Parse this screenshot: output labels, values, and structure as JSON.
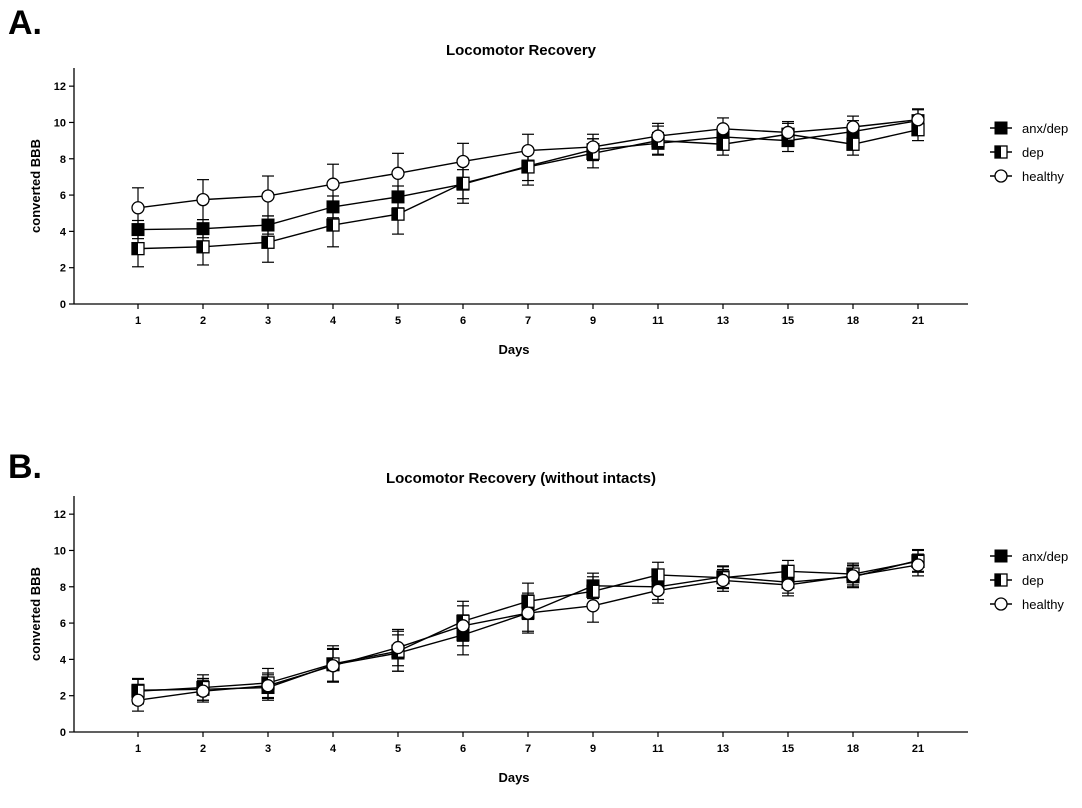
{
  "chart_data": [
    {
      "type": "line",
      "panel": "A.",
      "title": "Locomotor Recovery",
      "xlabel": "Days",
      "ylabel": "converted BBB",
      "ylim": [
        0,
        13
      ],
      "yticks": [
        0,
        2,
        4,
        6,
        8,
        10,
        12
      ],
      "categories": [
        "1",
        "2",
        "3",
        "4",
        "5",
        "6",
        "7",
        "9",
        "11",
        "13",
        "15",
        "18",
        "21"
      ],
      "grid": false,
      "legend_position": "right",
      "series": [
        {
          "name": "anx/dep",
          "marker": "square-filled",
          "values": [
            4.1,
            4.15,
            4.35,
            5.35,
            5.9,
            6.6,
            7.6,
            8.5,
            8.85,
            9.2,
            9.0,
            9.5,
            10.1
          ],
          "errors": [
            0.5,
            0.5,
            0.5,
            0.6,
            0.6,
            0.8,
            0.8,
            0.6,
            0.6,
            0.6,
            0.6,
            0.6,
            0.6
          ]
        },
        {
          "name": "dep",
          "marker": "square-half",
          "values": [
            3.05,
            3.15,
            3.4,
            4.35,
            4.95,
            6.65,
            7.55,
            8.3,
            9.0,
            8.8,
            9.35,
            8.8,
            9.6
          ],
          "errors": [
            1.0,
            1.0,
            1.1,
            1.2,
            1.1,
            1.1,
            1.0,
            0.8,
            0.8,
            0.6,
            0.6,
            0.6,
            0.6
          ]
        },
        {
          "name": "healthy",
          "marker": "circle-open",
          "values": [
            5.3,
            5.75,
            5.95,
            6.6,
            7.2,
            7.85,
            8.45,
            8.65,
            9.25,
            9.65,
            9.45,
            9.75,
            10.15
          ],
          "errors": [
            1.1,
            1.1,
            1.1,
            1.1,
            1.1,
            1.0,
            0.9,
            0.7,
            0.7,
            0.6,
            0.6,
            0.6,
            0.6
          ]
        }
      ]
    },
    {
      "type": "line",
      "panel": "B.",
      "title": "Locomotor Recovery (without intacts)",
      "xlabel": "Days",
      "ylabel": "converted BBB",
      "ylim": [
        0,
        13
      ],
      "yticks": [
        0,
        2,
        4,
        6,
        8,
        10,
        12
      ],
      "categories": [
        "1",
        "2",
        "3",
        "4",
        "5",
        "6",
        "7",
        "9",
        "11",
        "13",
        "15",
        "18",
        "21"
      ],
      "grid": false,
      "legend_position": "right",
      "series": [
        {
          "name": "anx/dep",
          "marker": "square-filled",
          "values": [
            2.3,
            2.35,
            2.45,
            3.7,
            4.35,
            5.35,
            6.55,
            8.05,
            8.0,
            8.55,
            8.25,
            8.55,
            9.45
          ],
          "errors": [
            0.6,
            0.6,
            0.7,
            0.9,
            1.0,
            1.1,
            1.0,
            0.7,
            0.7,
            0.6,
            0.6,
            0.6,
            0.6
          ]
        },
        {
          "name": "dep",
          "marker": "square-half",
          "values": [
            2.25,
            2.45,
            2.7,
            3.75,
            4.45,
            6.1,
            7.2,
            7.75,
            8.65,
            8.5,
            8.85,
            8.7,
            9.4
          ],
          "errors": [
            0.7,
            0.7,
            0.8,
            1.0,
            1.1,
            1.1,
            1.0,
            0.8,
            0.7,
            0.6,
            0.6,
            0.6,
            0.6
          ]
        },
        {
          "name": "healthy",
          "marker": "circle-open",
          "values": [
            1.75,
            2.25,
            2.55,
            3.65,
            4.65,
            5.85,
            6.55,
            6.95,
            7.8,
            8.35,
            8.1,
            8.6,
            9.2
          ],
          "errors": [
            0.6,
            0.6,
            0.7,
            0.9,
            1.0,
            1.1,
            1.1,
            0.9,
            0.7,
            0.6,
            0.6,
            0.6,
            0.6
          ]
        }
      ]
    }
  ]
}
